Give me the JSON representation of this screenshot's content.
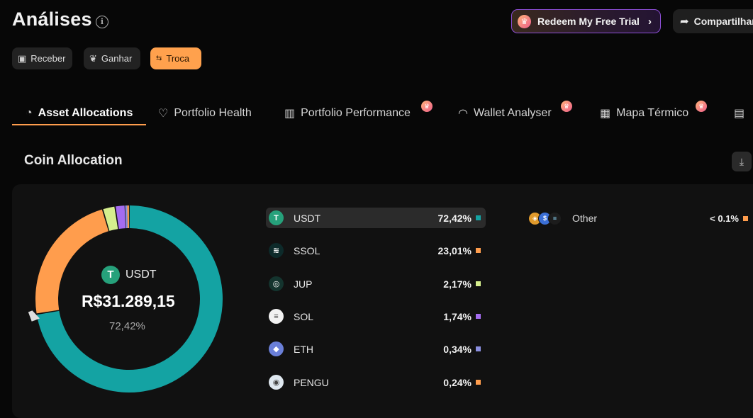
{
  "header": {
    "title": "Análises",
    "info_icon": "info-icon",
    "trial_button": "Redeem My Free Trial",
    "share_button": "Compartilhar"
  },
  "actions": [
    {
      "label": "Receber",
      "icon": "qr-icon"
    },
    {
      "label": "Ganhar",
      "icon": "sprout-icon"
    },
    {
      "label": "Troca",
      "icon": "swap-icon",
      "active": true
    }
  ],
  "tabs": [
    {
      "label": "Asset Allocations",
      "icon": "pie-icon",
      "active": true
    },
    {
      "label": "Portfolio Health",
      "icon": "heartbeat-icon",
      "premium": false
    },
    {
      "label": "Portfolio Performance",
      "icon": "bar-chart-icon",
      "premium": true
    },
    {
      "label": "Wallet Analyser",
      "icon": "gauge-icon",
      "premium": true
    },
    {
      "label": "Mapa Térmico",
      "icon": "grid-icon",
      "premium": true
    }
  ],
  "section": {
    "title": "Coin Allocation",
    "download_icon": "download-icon"
  },
  "donut_center": {
    "name": "USDT",
    "value": "R$31.289,15",
    "pct": "72,42%"
  },
  "chart_data": {
    "type": "pie",
    "categories": [
      "USDT",
      "SSOL",
      "JUP",
      "SOL",
      "ETH",
      "PENGU",
      "Other"
    ],
    "values": [
      72.42,
      23.01,
      2.17,
      1.74,
      0.34,
      0.24,
      0.08
    ],
    "colors": [
      "#14a3a3",
      "#ff9d4d",
      "#d6ef8e",
      "#a46cf0",
      "#8b8fe0",
      "#ff9d4d",
      "#ff9d4d"
    ]
  },
  "coins": [
    {
      "name": "USDT",
      "pct": "72,42%",
      "color": "#14a3a3",
      "icon_bg": "#26a17b",
      "glyph": "T",
      "highlight": true
    },
    {
      "name": "SSOL",
      "pct": "23,01%",
      "color": "#ff9d4d",
      "icon_bg": "#0d2a2a",
      "glyph": "≋"
    },
    {
      "name": "JUP",
      "pct": "2,17%",
      "color": "#d6ef8e",
      "icon_bg": "#14342e",
      "glyph": "◎"
    },
    {
      "name": "SOL",
      "pct": "1,74%",
      "color": "#a46cf0",
      "icon_bg": "#f2f2f2",
      "glyph": "≡"
    },
    {
      "name": "ETH",
      "pct": "0,34%",
      "color": "#8b8fe0",
      "icon_bg": "#6a7fd8",
      "glyph": "◆"
    },
    {
      "name": "PENGU",
      "pct": "0,24%",
      "color": "#ff9d4d",
      "icon_bg": "#dfe8f0",
      "glyph": "◉"
    }
  ],
  "other": {
    "name": "Other",
    "pct": "< 0.1%",
    "color": "#ff9d4d"
  }
}
